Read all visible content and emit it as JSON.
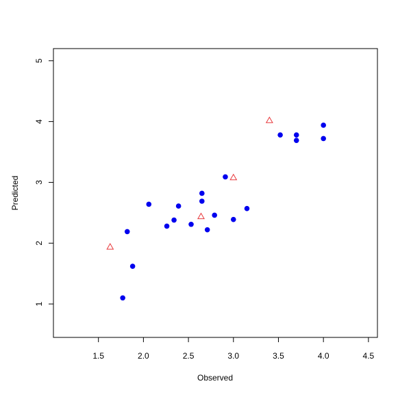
{
  "chart_data": {
    "type": "scatter",
    "title": "",
    "xlabel": "Observed",
    "ylabel": "Predicted",
    "xlim": [
      1.0,
      4.6
    ],
    "ylim": [
      0.45,
      5.2
    ],
    "xticks": [
      1.5,
      2.0,
      2.5,
      3.0,
      3.5,
      4.0,
      4.5
    ],
    "xtick_labels": [
      "1.5",
      "2.0",
      "2.5",
      "3.0",
      "3.5",
      "4.0",
      "4.5"
    ],
    "yticks": [
      1,
      2,
      3,
      4,
      5
    ],
    "ytick_labels": [
      "1",
      "2",
      "3",
      "4",
      "5"
    ],
    "grid": false,
    "series": [
      {
        "marker": "filled-circle",
        "color": "#0000EE",
        "points": [
          [
            1.77,
            1.1
          ],
          [
            1.82,
            2.19
          ],
          [
            1.88,
            1.62
          ],
          [
            2.06,
            2.64
          ],
          [
            2.26,
            2.28
          ],
          [
            2.34,
            2.38
          ],
          [
            2.39,
            2.61
          ],
          [
            2.53,
            2.31
          ],
          [
            2.65,
            2.69
          ],
          [
            2.65,
            2.82
          ],
          [
            2.71,
            2.22
          ],
          [
            2.79,
            2.46
          ],
          [
            2.91,
            3.09
          ],
          [
            3.0,
            2.39
          ],
          [
            3.15,
            2.57
          ],
          [
            3.52,
            3.78
          ],
          [
            3.7,
            3.69
          ],
          [
            3.7,
            3.78
          ],
          [
            4.0,
            3.72
          ],
          [
            4.0,
            3.94
          ]
        ]
      },
      {
        "marker": "open-triangle",
        "color": "#E8383B",
        "points": [
          [
            1.63,
            1.94
          ],
          [
            2.64,
            2.44
          ],
          [
            3.0,
            3.08
          ],
          [
            3.4,
            4.02
          ]
        ]
      }
    ]
  }
}
